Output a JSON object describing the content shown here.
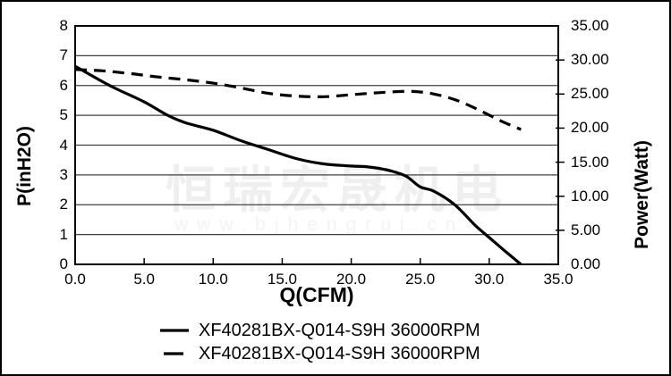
{
  "chart_data": {
    "type": "line",
    "title": "",
    "xlabel": "Q(CFM)",
    "ylabel_left": "P(inH2O)",
    "ylabel_right": "Power(Watt)",
    "xlim": [
      0,
      35
    ],
    "ylim_left": [
      0,
      8
    ],
    "ylim_right": [
      0,
      35
    ],
    "grid": "horizontal-only",
    "legend_position": "bottom-center",
    "x_ticks": [
      {
        "label": "0.0",
        "value": 0
      },
      {
        "label": "5.0",
        "value": 5
      },
      {
        "label": "10.0",
        "value": 10
      },
      {
        "label": "15.0",
        "value": 15
      },
      {
        "label": "20.0",
        "value": 20
      },
      {
        "label": "25.0",
        "value": 25
      },
      {
        "label": "30.0",
        "value": 30
      },
      {
        "label": "35.0",
        "value": 35
      }
    ],
    "left_ticks": [
      {
        "label": "0",
        "value": 0
      },
      {
        "label": "1",
        "value": 1
      },
      {
        "label": "2",
        "value": 2
      },
      {
        "label": "3",
        "value": 3
      },
      {
        "label": "4",
        "value": 4
      },
      {
        "label": "5",
        "value": 5
      },
      {
        "label": "6",
        "value": 6
      },
      {
        "label": "7",
        "value": 7
      },
      {
        "label": "8",
        "value": 8
      }
    ],
    "right_ticks": [
      {
        "label": "0.00",
        "value": 0
      },
      {
        "label": "5.00",
        "value": 5
      },
      {
        "label": "10.00",
        "value": 10
      },
      {
        "label": "15.00",
        "value": 15
      },
      {
        "label": "20.00",
        "value": 20
      },
      {
        "label": "25.00",
        "value": 25
      },
      {
        "label": "30.00",
        "value": 30
      },
      {
        "label": "35.00",
        "value": 35
      }
    ],
    "series": [
      {
        "name": "XF40281BX-Q014-S9H 36000RPM",
        "line_style": "solid",
        "color": "#000000",
        "axis": "left",
        "x": [
          0,
          2.5,
          5,
          6.7,
          8,
          10,
          12,
          14,
          16,
          18,
          20,
          21,
          22,
          23,
          24,
          25,
          26,
          27.5,
          29,
          30,
          31,
          32.3
        ],
        "y": [
          6.65,
          6.0,
          5.45,
          5.0,
          4.75,
          4.5,
          4.15,
          3.85,
          3.55,
          3.37,
          3.3,
          3.28,
          3.22,
          3.12,
          2.95,
          2.6,
          2.45,
          2.0,
          1.3,
          0.9,
          0.5,
          0
        ]
      },
      {
        "name": "XF40281BX-Q014-S9H 36000RPM",
        "line_style": "dashed",
        "color": "#000000",
        "axis": "right",
        "x": [
          0,
          2,
          4,
          6,
          8,
          10,
          12,
          14,
          16,
          18,
          20,
          22,
          24,
          25,
          26,
          27,
          28,
          29,
          30,
          31,
          32.3
        ],
        "y": [
          28.6,
          28.4,
          28.0,
          27.5,
          27.1,
          26.6,
          25.9,
          25.1,
          24.7,
          24.6,
          24.9,
          25.2,
          25.4,
          25.3,
          25.0,
          24.5,
          23.8,
          22.9,
          21.9,
          20.9,
          19.8
        ]
      }
    ]
  },
  "legend": [
    {
      "label": "XF40281BX-Q014-S9H 36000RPM",
      "marker": "solid-line"
    },
    {
      "label": "XF40281BX-Q014-S9H 36000RPM",
      "marker": "dashed-line"
    }
  ],
  "watermark": {
    "line1": "恒瑞宏晟机电",
    "line2": "www.bjhengrui.cn"
  },
  "colors": {
    "curve": "#000000",
    "grid": "#404040",
    "axis_border": "#000000",
    "watermark_cn": "#efefef",
    "watermark_url": "#f3f3f3",
    "background": "#ffffff"
  }
}
